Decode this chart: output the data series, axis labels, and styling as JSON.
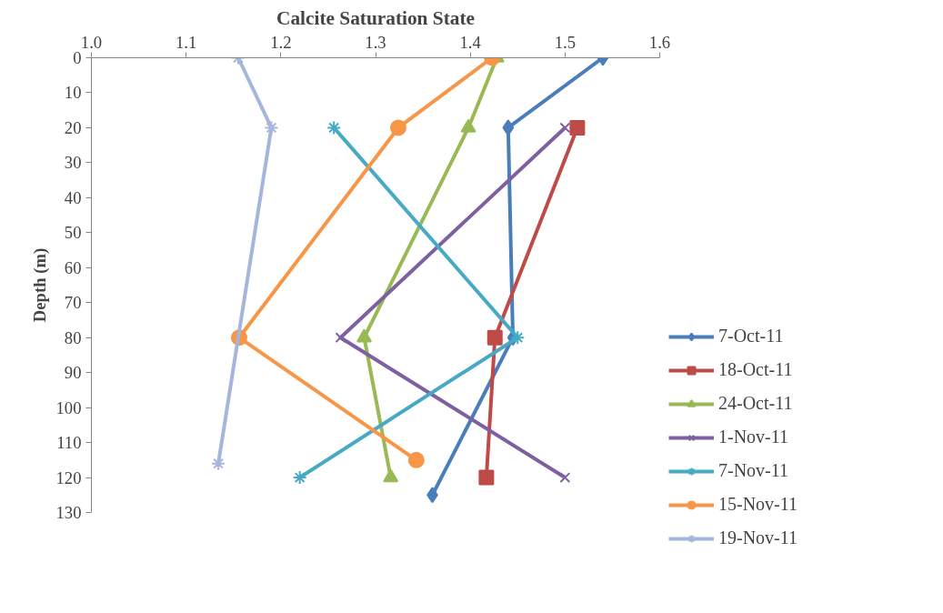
{
  "chart_data": {
    "type": "line",
    "title": "Calcite Saturation State",
    "ylabel": "Depth (m)",
    "xlim": [
      1.0,
      1.6
    ],
    "xticks": [
      {
        "value": 1.0,
        "label": "1.0"
      },
      {
        "value": 1.1,
        "label": "1.1"
      },
      {
        "value": 1.2,
        "label": "1.2"
      },
      {
        "value": 1.3,
        "label": "1.3"
      },
      {
        "value": 1.4,
        "label": "1.4"
      },
      {
        "value": 1.5,
        "label": "1.5"
      },
      {
        "value": 1.6,
        "label": "1.6"
      }
    ],
    "ylim": [
      130,
      0
    ],
    "yticks": [
      0,
      10,
      20,
      30,
      40,
      50,
      60,
      70,
      80,
      90,
      100,
      110,
      120,
      130
    ],
    "grid": false,
    "legend": "right",
    "series": [
      {
        "name": "7-Oct-11",
        "color": "#4a7ebb",
        "marker": "diamond",
        "x": [
          1.54,
          1.44,
          1.445,
          1.36
        ],
        "values": [
          0,
          20,
          80,
          125
        ]
      },
      {
        "name": "18-Oct-11",
        "color": "#be4b48",
        "marker": "square",
        "x": [
          1.513,
          1.426,
          1.417
        ],
        "values": [
          20,
          80,
          120
        ]
      },
      {
        "name": "24-Oct-11",
        "color": "#98b954",
        "marker": "triangle",
        "x": [
          1.428,
          1.398,
          1.288,
          1.316
        ],
        "values": [
          0,
          20,
          80,
          120
        ]
      },
      {
        "name": "1-Nov-11",
        "color": "#7d60a0",
        "marker": "x",
        "x": [
          1.5,
          1.263,
          1.5
        ],
        "values": [
          20,
          80,
          120
        ]
      },
      {
        "name": "7-Nov-11",
        "color": "#46aac5",
        "marker": "cross",
        "x": [
          1.256,
          1.45,
          1.22
        ],
        "values": [
          20,
          80,
          120
        ]
      },
      {
        "name": "15-Nov-11",
        "color": "#f79646",
        "marker": "circle",
        "x": [
          1.423,
          1.324,
          1.156,
          1.343
        ],
        "values": [
          0,
          20,
          80,
          115
        ]
      },
      {
        "name": "19-Nov-11",
        "color": "#a5b6dd",
        "marker": "cross",
        "x": [
          1.155,
          1.19,
          1.134
        ],
        "values": [
          0,
          20,
          116
        ]
      }
    ]
  }
}
